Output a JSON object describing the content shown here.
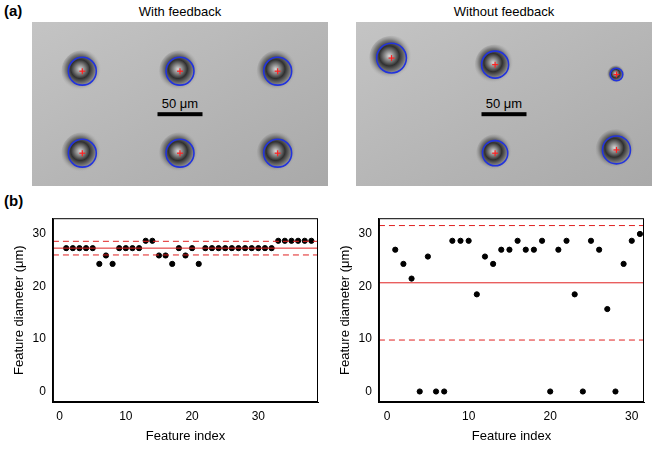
{
  "panel_labels": [
    "(a)",
    "(b)"
  ],
  "images": [
    {
      "title": "With feedback",
      "scale_bar": {
        "value": 50,
        "label": "50 μm"
      },
      "features": [
        {
          "diameter": 31
        },
        {
          "diameter": 31
        },
        {
          "diameter": 31
        },
        {
          "diameter": 31
        },
        {
          "diameter": 31
        },
        {
          "diameter": 31
        }
      ]
    },
    {
      "title": "Without feedback",
      "scale_bar": {
        "value": 50,
        "label": "50 μm"
      },
      "features": [
        {
          "diameter": 33
        },
        {
          "diameter": 30
        },
        {
          "diameter": 14
        },
        {
          "diameter": 28
        },
        {
          "diameter": 31
        }
      ]
    }
  ],
  "chart_data": [
    {
      "type": "scatter",
      "x_label": "Feature index",
      "y_label": "Feature diameter (μm)",
      "x": [
        1,
        2,
        3,
        4,
        5,
        6,
        7,
        8,
        9,
        10,
        11,
        12,
        13,
        14,
        15,
        16,
        17,
        18,
        19,
        20,
        21,
        22,
        23,
        24,
        25,
        26,
        27,
        28,
        29,
        30,
        31,
        32,
        33,
        34,
        35,
        36,
        37,
        38
      ],
      "values": [
        27.3,
        27.3,
        27.3,
        27.3,
        27.3,
        24.3,
        25.9,
        24.3,
        27.3,
        27.3,
        27.3,
        27.3,
        28.7,
        28.7,
        25.9,
        25.9,
        24.3,
        27.3,
        25.9,
        27.3,
        24.3,
        27.3,
        27.3,
        27.3,
        27.3,
        27.3,
        27.3,
        27.3,
        27.3,
        27.3,
        27.3,
        27.3,
        28.7,
        28.7,
        28.7,
        28.7,
        28.7,
        28.7
      ],
      "color": "#000000",
      "marker": "circle",
      "xlim": [
        -1,
        39
      ],
      "xticks": [
        0,
        10,
        20,
        30
      ],
      "ylim": [
        -2,
        33
      ],
      "yticks": [
        0,
        10,
        20,
        30
      ],
      "grid": false,
      "reference_lines": [
        {
          "value": 27.3,
          "color": "#e02020",
          "line_style": "solid"
        },
        {
          "value": 28.6,
          "color": "#e02020",
          "line_style": "dashed"
        },
        {
          "value": 26.0,
          "color": "#e02020",
          "line_style": "dashed"
        }
      ]
    },
    {
      "type": "scatter",
      "x_label": "Feature index",
      "y_label": "Feature diameter (μm)",
      "x": [
        1,
        2,
        3,
        4,
        5,
        6,
        7,
        8,
        9,
        10,
        11,
        12,
        13,
        14,
        15,
        16,
        17,
        18,
        19,
        20,
        21,
        22,
        23,
        24,
        25,
        26,
        27,
        28,
        29,
        30,
        31
      ],
      "values": [
        27,
        24.3,
        21.5,
        0,
        25.7,
        0,
        0,
        28.7,
        28.7,
        28.7,
        18.5,
        25.7,
        24.3,
        27,
        27,
        28.7,
        27,
        27,
        28.7,
        0,
        27,
        28.7,
        18.5,
        0,
        28.7,
        27,
        15.7,
        0,
        24.3,
        28.7,
        30
      ],
      "color": "#000000",
      "marker": "circle",
      "xlim": [
        -1,
        31.5
      ],
      "xticks": [
        0,
        10,
        20,
        30
      ],
      "ylim": [
        -2,
        33
      ],
      "yticks": [
        0,
        10,
        20,
        30
      ],
      "grid": false,
      "reference_lines": [
        {
          "value": 20.7,
          "color": "#e02020",
          "line_style": "solid"
        },
        {
          "value": 31.6,
          "color": "#e02020",
          "line_style": "dashed"
        },
        {
          "value": 9.8,
          "color": "#e02020",
          "line_style": "dashed"
        }
      ]
    }
  ]
}
